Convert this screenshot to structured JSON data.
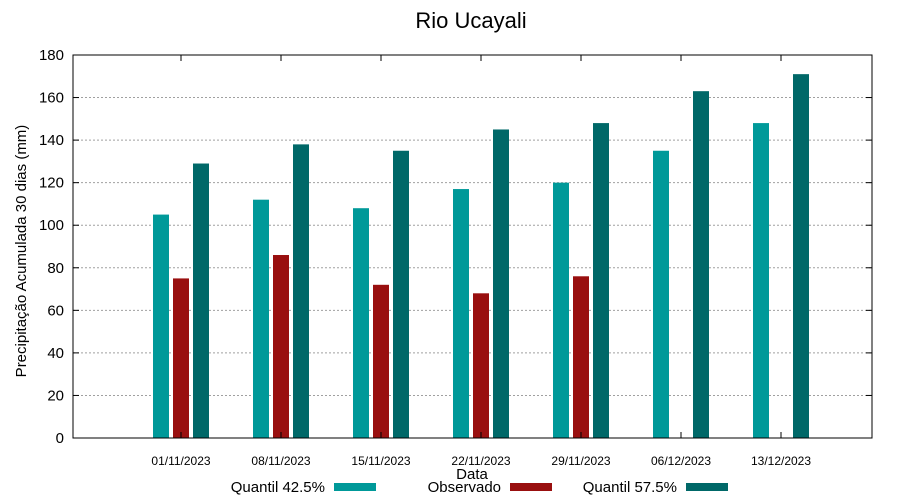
{
  "chart_data": {
    "type": "bar",
    "title": "Rio Ucayali",
    "xlabel": "Data",
    "ylabel": "Precipitação Acumulada 30 dias (mm)",
    "ylim": [
      0,
      180
    ],
    "yticks": [
      0,
      20,
      40,
      60,
      80,
      100,
      120,
      140,
      160,
      180
    ],
    "grid": true,
    "legend_position": "bottom",
    "categories": [
      "01/11/2023",
      "08/11/2023",
      "15/11/2023",
      "22/11/2023",
      "29/11/2023",
      "06/12/2023",
      "13/12/2023"
    ],
    "series": [
      {
        "name": "Quantil 42.5%",
        "color": "#009999",
        "values": [
          105,
          112,
          108,
          117,
          120,
          135,
          148
        ]
      },
      {
        "name": "Observado",
        "color": "#990f0f",
        "values": [
          75,
          86,
          72,
          68,
          76,
          null,
          null
        ]
      },
      {
        "name": "Quantil 57.5%",
        "color": "#006868",
        "values": [
          129,
          138,
          135,
          145,
          148,
          163,
          171
        ]
      }
    ]
  }
}
